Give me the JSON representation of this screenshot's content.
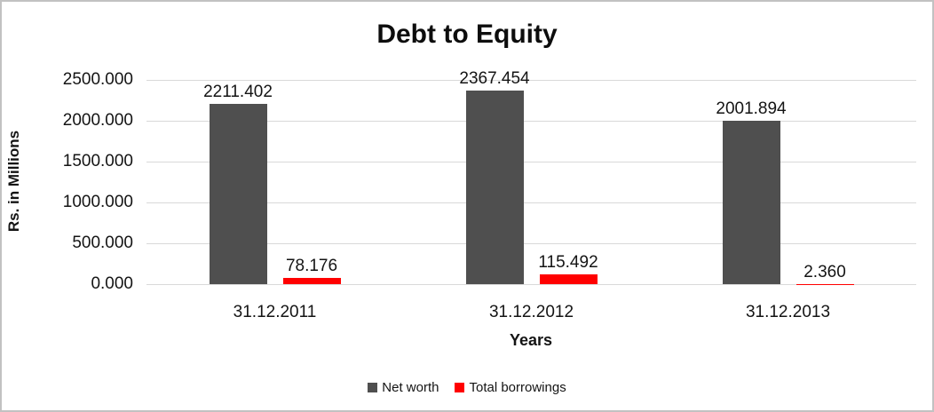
{
  "chart_data": {
    "type": "bar",
    "title": "Debt to Equity",
    "xlabel": "Years",
    "ylabel": "Rs. in Millions",
    "categories": [
      "31.12.2011",
      "31.12.2012",
      "31.12.2013"
    ],
    "series": [
      {
        "name": "Net worth",
        "color": "#4f4f4f",
        "values": [
          2211.402,
          2367.454,
          2001.894
        ],
        "data_labels": [
          "2211.402",
          "2367.454",
          "2001.894"
        ]
      },
      {
        "name": "Total borrowings",
        "color": "#ff0000",
        "values": [
          78.176,
          115.492,
          2.36
        ],
        "data_labels": [
          "78.176",
          "115.492",
          "2.360"
        ]
      }
    ],
    "ylim": [
      0,
      2500
    ],
    "yticks": [
      {
        "value": 0,
        "label": "0.000"
      },
      {
        "value": 500,
        "label": "500.000"
      },
      {
        "value": 1000,
        "label": "1000.000"
      },
      {
        "value": 1500,
        "label": "1500.000"
      },
      {
        "value": 2000,
        "label": "2000.000"
      },
      {
        "value": 2500,
        "label": "2500.000"
      }
    ],
    "grid": "horizontal",
    "legend_position": "bottom",
    "colors": {
      "gridline": "#d9d9d9",
      "text": "#141414",
      "background": "#ffffff",
      "border": "#c2c2c2"
    }
  }
}
